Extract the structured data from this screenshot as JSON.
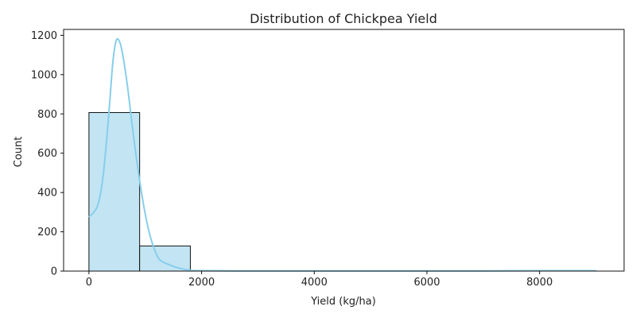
{
  "chart_data": {
    "type": "bar",
    "title": "Distribution of Chickpea Yield",
    "xlabel": "Yield (kg/ha)",
    "ylabel": "Count",
    "xlim": [
      -450,
      9500
    ],
    "ylim": [
      0,
      1230
    ],
    "xticks": [
      0,
      2000,
      4000,
      6000,
      8000
    ],
    "yticks": [
      0,
      200,
      400,
      600,
      800,
      1000,
      1200
    ],
    "bins": [
      {
        "start": 0,
        "end": 900,
        "count": 807
      },
      {
        "start": 900,
        "end": 1800,
        "count": 128
      },
      {
        "start": 1800,
        "end": 2700,
        "count": 2
      },
      {
        "start": 2700,
        "end": 3600,
        "count": 1
      },
      {
        "start": 3600,
        "end": 4500,
        "count": 1
      },
      {
        "start": 4500,
        "end": 5400,
        "count": 1
      },
      {
        "start": 5400,
        "end": 6300,
        "count": 1
      },
      {
        "start": 6300,
        "end": 7200,
        "count": 0
      },
      {
        "start": 7200,
        "end": 8100,
        "count": 1
      },
      {
        "start": 8100,
        "end": 9000,
        "count": 1
      }
    ],
    "kde": {
      "x": [
        0,
        150,
        250,
        350,
        420,
        480,
        540,
        600,
        680,
        760,
        850,
        950,
        1050,
        1150,
        1250,
        1400,
        1600,
        1800,
        2000,
        3000,
        4000,
        5000,
        6000,
        7000,
        8000,
        9000
      ],
      "y": [
        275,
        330,
        480,
        790,
        1050,
        1170,
        1170,
        1100,
        950,
        760,
        560,
        370,
        220,
        120,
        60,
        35,
        15,
        4,
        2,
        1,
        1,
        1,
        1,
        1,
        2,
        2
      ]
    },
    "bar_fill": "#c2e4f3",
    "bar_edge": "#111111",
    "kde_color": "#87ceeb",
    "grid": false,
    "legend": "none"
  }
}
